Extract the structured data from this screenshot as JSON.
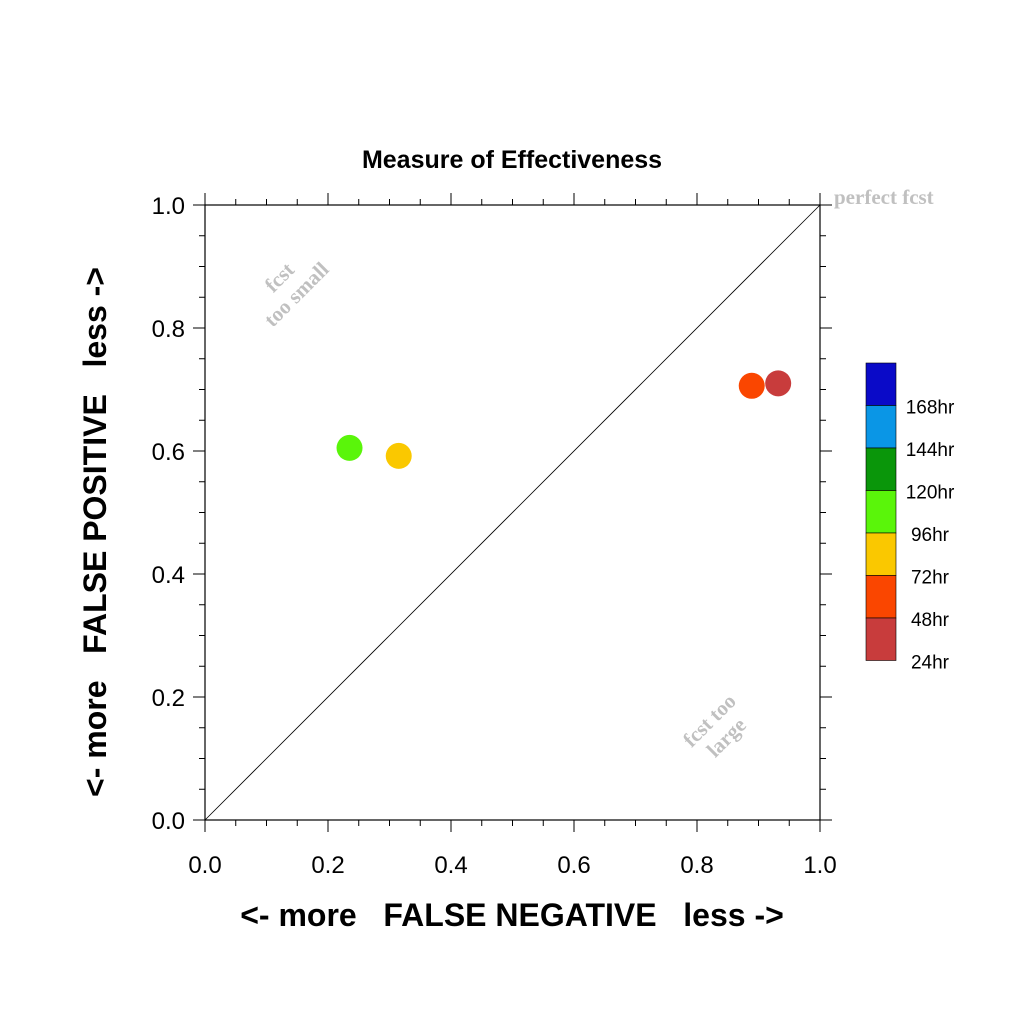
{
  "chart_data": {
    "type": "scatter",
    "title": "Measure of Effectiveness",
    "xlabel": "<- more   FALSE NEGATIVE   less ->",
    "ylabel": "<- more   FALSE POSITIVE   less ->",
    "xlim": [
      0.0,
      1.0
    ],
    "ylim": [
      0.0,
      1.0
    ],
    "xticks": [
      "0.0",
      "0.2",
      "0.4",
      "0.6",
      "0.8",
      "1.0"
    ],
    "yticks": [
      "0.0",
      "0.2",
      "0.4",
      "0.6",
      "0.8",
      "1.0"
    ],
    "grid": false,
    "reference_line": [
      [
        0.0,
        0.0
      ],
      [
        1.0,
        1.0
      ]
    ],
    "annotations": {
      "perfect": "perfect fcst",
      "small_line1": "fcst",
      "small_line2": "too small",
      "large_line1": "fcst too",
      "large_line2": "large"
    },
    "annotation_color": "#c0c0c0",
    "legend_position": "right",
    "legend": [
      {
        "label": "168hr",
        "color": "#0a0ac8"
      },
      {
        "label": "144hr",
        "color": "#0a96e6"
      },
      {
        "label": "120hr",
        "color": "#0a960a"
      },
      {
        "label": "96hr",
        "color": "#5af50a"
      },
      {
        "label": "72hr",
        "color": "#fac800"
      },
      {
        "label": "48hr",
        "color": "#fa4600"
      },
      {
        "label": "24hr",
        "color": "#c83c3c"
      }
    ],
    "points": [
      {
        "series": "96hr",
        "x": 0.235,
        "y": 0.605,
        "color": "#5af50a"
      },
      {
        "series": "72hr",
        "x": 0.315,
        "y": 0.592,
        "color": "#fac800"
      },
      {
        "series": "48hr",
        "x": 0.889,
        "y": 0.706,
        "color": "#fa4600"
      },
      {
        "series": "24hr",
        "x": 0.932,
        "y": 0.71,
        "color": "#c83c3c"
      }
    ]
  }
}
